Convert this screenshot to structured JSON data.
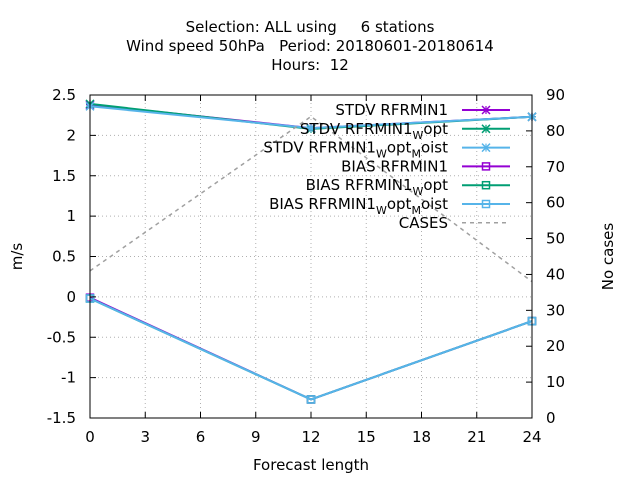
{
  "chart_data": {
    "type": "line",
    "title_lines": [
      "Selection: ALL using     6 stations",
      "Wind speed 50hPa   Period: 20180601-20180614",
      "Hours:  12"
    ],
    "xlabel": "Forecast length",
    "ylabel": "m/s",
    "y2label": "No cases",
    "xlim": [
      0,
      24
    ],
    "ylim": [
      -1.5,
      2.5
    ],
    "y2lim": [
      0,
      90
    ],
    "xticks": [
      0,
      3,
      6,
      9,
      12,
      15,
      18,
      21,
      24
    ],
    "yticks": [
      -1.5,
      -1,
      -0.5,
      0,
      0.5,
      1,
      1.5,
      2,
      2.5
    ],
    "y2ticks": [
      0,
      10,
      20,
      30,
      40,
      50,
      60,
      70,
      80,
      90
    ],
    "grid": true,
    "legend_position": "top-right",
    "x": [
      0,
      12,
      24
    ],
    "series": [
      {
        "name": "STDV RFRMIN1",
        "name_base": "STDV RFRMIN1",
        "name_rest": "",
        "color": "#9400d3",
        "marker": "x",
        "axis": "y",
        "values": [
          2.38,
          2.09,
          2.23
        ]
      },
      {
        "name": "STDV RFRMIN1_W opt",
        "name_base": "STDV RFRMIN1",
        "name_rest": [
          [
            "W",
            "opt"
          ]
        ],
        "color": "#009e73",
        "marker": "x",
        "axis": "y",
        "values": [
          2.39,
          2.08,
          2.23
        ]
      },
      {
        "name": "STDV RFRMIN1_W opt_M oist",
        "name_base": "STDV RFRMIN1",
        "name_rest": [
          [
            "W",
            "opt"
          ],
          [
            "M",
            "oist"
          ]
        ],
        "color": "#56b4e9",
        "marker": "x",
        "axis": "y",
        "values": [
          2.36,
          2.09,
          2.23
        ]
      },
      {
        "name": "BIAS RFRMIN1",
        "name_base": "BIAS RFRMIN1",
        "name_rest": "",
        "color": "#9400d3",
        "marker": "square",
        "axis": "y",
        "values": [
          -0.01,
          -1.27,
          -0.3
        ]
      },
      {
        "name": "BIAS RFRMIN1_W opt",
        "name_base": "BIAS RFRMIN1",
        "name_rest": [
          [
            "W",
            "opt"
          ]
        ],
        "color": "#009e73",
        "marker": "square",
        "axis": "y",
        "values": [
          -0.02,
          -1.27,
          -0.3
        ]
      },
      {
        "name": "BIAS RFRMIN1_W opt_M oist",
        "name_base": "BIAS RFRMIN1",
        "name_rest": [
          [
            "W",
            "opt"
          ],
          [
            "M",
            "oist"
          ]
        ],
        "color": "#56b4e9",
        "marker": "square",
        "axis": "y",
        "values": [
          -0.02,
          -1.27,
          -0.3
        ]
      },
      {
        "name": "CASES",
        "name_base": "CASES",
        "name_rest": "",
        "color": "#a0a0a0",
        "marker": "none",
        "dashed": true,
        "axis": "y2",
        "values": [
          41,
          84,
          38
        ]
      }
    ]
  }
}
